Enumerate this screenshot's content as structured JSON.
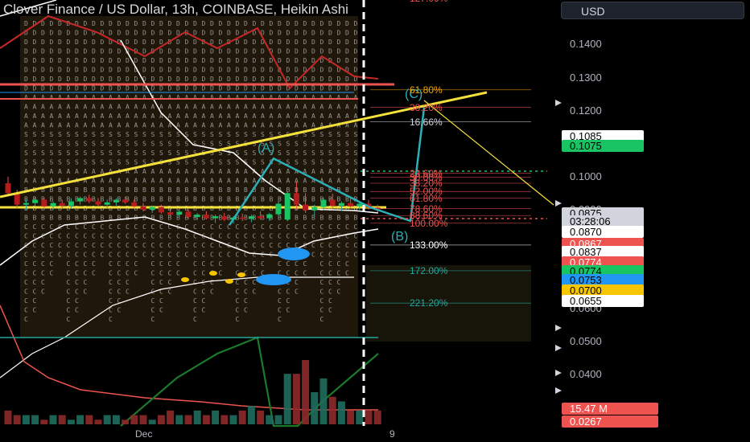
{
  "title": "Clover Finance / US Dollar, 13h, COINBASE, Heikin Ashi",
  "currency": "USD",
  "colors": {
    "background": "#000000",
    "up": "#26a69a",
    "down": "#ef5350",
    "fib_line": "#c4a000",
    "wave": "#2ab0b8",
    "trend": "#f5e13b"
  },
  "chart_data": {
    "type": "line",
    "title": "Clover Finance / US Dollar, 13h, COINBASE, Heikin Ashi",
    "ylim": [
      0.0245,
      0.1535
    ],
    "y_ticks": [
      0.14,
      0.13,
      0.12,
      0.1,
      0.09,
      0.06,
      0.05,
      0.04
    ],
    "y_tick_labels": [
      "0.1400",
      "0.1300",
      "0.1200",
      "0.1000",
      "0.0900",
      "0.0600",
      "0.0500",
      "0.0400"
    ],
    "x_labels": [
      "Dec",
      "9"
    ],
    "price_labels": [
      {
        "value": 0.1085,
        "text": "0.1085",
        "bg": "#ffffff",
        "fg": "#000000"
      },
      {
        "value": 0.1075,
        "text": "0.1075",
        "bg": "#19c462",
        "fg": "#000000"
      },
      {
        "value": 0.0875,
        "text": "0.0875",
        "bg": "#d1d4dc",
        "fg": "#000000"
      },
      {
        "value": 0.086,
        "text": "03:28:06",
        "bg": "#d1d4dc",
        "fg": "#000000"
      },
      {
        "value": 0.087,
        "text": "0.0870",
        "bg": "#ffffff",
        "fg": "#000000"
      },
      {
        "value": 0.0867,
        "text": "0.0867",
        "bg": "#ef5350",
        "fg": "#ffffff"
      },
      {
        "value": 0.0837,
        "text": "0.0837",
        "bg": "#ffffff",
        "fg": "#000000"
      },
      {
        "value": 0.0774,
        "text": "0.0774",
        "bg": "#ef5350",
        "fg": "#ffffff"
      },
      {
        "value": 0.0774,
        "text": "0.0774",
        "bg": "#19c462",
        "fg": "#000000"
      },
      {
        "value": 0.0753,
        "text": "0.0753",
        "bg": "#2196f3",
        "fg": "#000000"
      },
      {
        "value": 0.07,
        "text": "0.0700",
        "bg": "#f7c600",
        "fg": "#000000"
      },
      {
        "value": 0.0655,
        "text": "0.0655",
        "bg": "#ffffff",
        "fg": "#000000"
      }
    ],
    "volume_label": {
      "text": "15.47 M",
      "bg": "#ef5350"
    },
    "indicator_label": {
      "text": "0.0267",
      "bg": "#ef5350"
    },
    "fib_levels": [
      {
        "label": "127.00%",
        "value": 0.154,
        "color": "#ef5350"
      },
      {
        "label": "61.80%",
        "value": 0.1263,
        "color": "#f7a600"
      },
      {
        "label": "38.20%",
        "value": 0.121,
        "color": "#ef5350"
      },
      {
        "label": "16.66%",
        "value": 0.1166,
        "color": "#d1d4dc"
      },
      {
        "label": "23.60%",
        "value": 0.101,
        "color": "#ef5350"
      },
      {
        "label": "30.00%",
        "value": 0.0998,
        "color": "#ef5350"
      },
      {
        "label": "38.20%",
        "value": 0.098,
        "color": "#ef5350"
      },
      {
        "label": "52.00%",
        "value": 0.0955,
        "color": "#ef5350"
      },
      {
        "label": "61.80%",
        "value": 0.0935,
        "color": "#ef5350"
      },
      {
        "label": "78.60%",
        "value": 0.0903,
        "color": "#ef5350"
      },
      {
        "label": "88.60%",
        "value": 0.0882,
        "color": "#ef5350"
      },
      {
        "label": "100.00%",
        "value": 0.0859,
        "color": "#ef5350"
      },
      {
        "label": "133.00%",
        "value": 0.0793,
        "color": "#ffffff"
      },
      {
        "label": "172.00%",
        "value": 0.0715,
        "color": "#26a69a"
      },
      {
        "label": "221.20%",
        "value": 0.0617,
        "color": "#26a69a"
      }
    ],
    "wave_points": [
      {
        "label": "(A)",
        "time_index": 31,
        "value": 0.1055
      },
      {
        "label": "(B)",
        "time_index": 47,
        "value": 0.0866
      },
      {
        "label": "(C)",
        "time_index": 49,
        "value": 0.1209
      }
    ],
    "candles": [
      [
        0.098,
        0.1,
        0.094,
        0.095
      ],
      [
        0.095,
        0.096,
        0.0905,
        0.0915
      ],
      [
        0.0915,
        0.093,
        0.09,
        0.092
      ],
      [
        0.092,
        0.094,
        0.091,
        0.093
      ],
      [
        0.093,
        0.0935,
        0.0905,
        0.091
      ],
      [
        0.091,
        0.0925,
        0.09,
        0.092
      ],
      [
        0.092,
        0.093,
        0.0905,
        0.0912
      ],
      [
        0.0912,
        0.0935,
        0.0905,
        0.0925
      ],
      [
        0.0925,
        0.094,
        0.0915,
        0.0935
      ],
      [
        0.0935,
        0.0945,
        0.092,
        0.0925
      ],
      [
        0.0925,
        0.0935,
        0.091,
        0.0915
      ],
      [
        0.0915,
        0.093,
        0.0905,
        0.0922
      ],
      [
        0.0922,
        0.0935,
        0.0912,
        0.093
      ],
      [
        0.093,
        0.094,
        0.0918,
        0.0922
      ],
      [
        0.0922,
        0.093,
        0.0905,
        0.091
      ],
      [
        0.091,
        0.092,
        0.0895,
        0.09
      ],
      [
        0.09,
        0.0912,
        0.089,
        0.0908
      ],
      [
        0.0908,
        0.0915,
        0.0888,
        0.0892
      ],
      [
        0.0892,
        0.0905,
        0.088,
        0.0885
      ],
      [
        0.0885,
        0.0898,
        0.0878,
        0.0894
      ],
      [
        0.0894,
        0.09,
        0.0872,
        0.0878
      ],
      [
        0.0878,
        0.089,
        0.0868,
        0.0885
      ],
      [
        0.0885,
        0.0895,
        0.087,
        0.0874
      ],
      [
        0.0874,
        0.0885,
        0.086,
        0.088
      ],
      [
        0.088,
        0.089,
        0.0866,
        0.087
      ],
      [
        0.087,
        0.088,
        0.0858,
        0.0876
      ],
      [
        0.0876,
        0.0888,
        0.0866,
        0.0872
      ],
      [
        0.0872,
        0.0885,
        0.0862,
        0.088
      ],
      [
        0.088,
        0.0895,
        0.087,
        0.0874
      ],
      [
        0.0874,
        0.089,
        0.0866,
        0.0886
      ],
      [
        0.0886,
        0.0925,
        0.0882,
        0.0918
      ],
      [
        0.087,
        0.0955,
        0.0865,
        0.095
      ],
      [
        0.095,
        0.0985,
        0.09,
        0.0915
      ],
      [
        0.0915,
        0.095,
        0.089,
        0.0898
      ],
      [
        0.0898,
        0.0915,
        0.088,
        0.0908
      ],
      [
        0.0908,
        0.0935,
        0.09,
        0.093
      ],
      [
        0.093,
        0.0948,
        0.0905,
        0.0912
      ],
      [
        0.0912,
        0.0925,
        0.0896,
        0.092
      ],
      [
        0.092,
        0.0935,
        0.0905,
        0.091
      ],
      [
        0.091,
        0.0925,
        0.0898,
        0.0918
      ],
      [
        0.0918,
        0.093,
        0.09,
        0.0906
      ],
      [
        0.0906,
        0.0915,
        0.0892,
        0.0898
      ]
    ],
    "volume": [
      3,
      2,
      2,
      2,
      1,
      2,
      2,
      1,
      2,
      2,
      1,
      2,
      2,
      1,
      2,
      2,
      1,
      2,
      3,
      2,
      2,
      3,
      2,
      3,
      2,
      2,
      3,
      4,
      3,
      2,
      2,
      11,
      11,
      14,
      7,
      10,
      6,
      5,
      3,
      3,
      3,
      3
    ]
  }
}
